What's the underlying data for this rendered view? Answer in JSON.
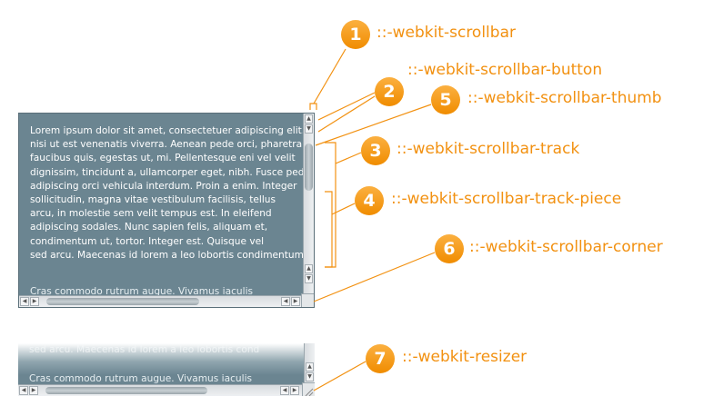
{
  "sample_text": {
    "lines": [
      "Lorem ipsum dolor sit amet, consectetuer adipiscing elit. Nam",
      "nisi ut est venenatis viverra. Aenean pede orci, pharetra ut,",
      "faucibus quis, egestas ut, mi. Pellentesque eni vel velit",
      "dignissim, tincidunt a, ullamcorper eget, nibh. Fusce pede",
      "adipiscing orci vehicula interdum. Proin a enim. Integer",
      "sollicitudin, magna vitae vestibulum facilisis, tellus",
      "arcu, in molestie sem velit tempus est. In eleifend",
      "adipiscing sodales. Nunc sapien felis, aliquam et,",
      "condimentum ut, tortor. Integer est. Quisque vel",
      "sed arcu. Maecenas id lorem a leo lobortis condimentum."
    ],
    "trailing_line": "Cras commodo rutrum augue. Vivamus iaculis",
    "faded_line": "sed arcu. Maecenas id lorem a leo lobortis cond"
  },
  "callouts": [
    {
      "number": "1",
      "label": "::-webkit-scrollbar"
    },
    {
      "number": "2",
      "label": "::-webkit-scrollbar-button"
    },
    {
      "number": "5",
      "label": "::-webkit-scrollbar-thumb"
    },
    {
      "number": "3",
      "label": "::-webkit-scrollbar-track"
    },
    {
      "number": "4",
      "label": "::-webkit-scrollbar-track-piece"
    },
    {
      "number": "6",
      "label": "::-webkit-scrollbar-corner"
    },
    {
      "number": "7",
      "label": "::-webkit-resizer"
    }
  ],
  "colors": {
    "accent": "#f29111",
    "box_background": "#6b8591"
  }
}
